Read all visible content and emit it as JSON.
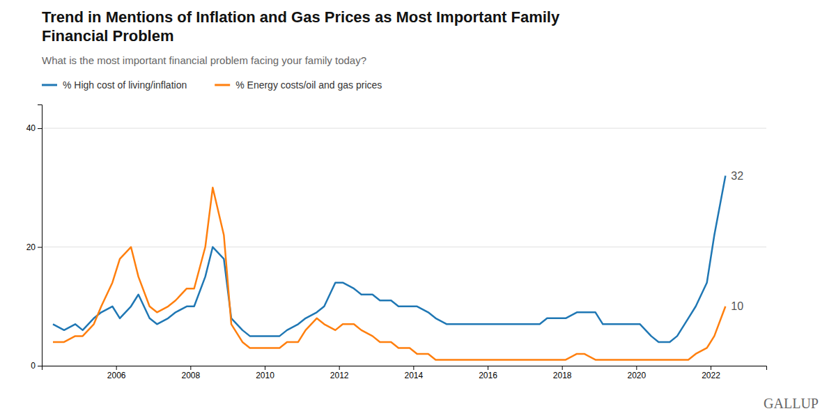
{
  "chart_data": {
    "type": "line",
    "title": "Trend in Mentions of Inflation and Gas Prices as Most Important Family\nFinancial Problem",
    "subtitle": "What is the most important financial problem facing your family today?",
    "source": "GALLUP",
    "x": [
      2004.3,
      2004.6,
      2004.9,
      2005.1,
      2005.4,
      2005.6,
      2005.9,
      2006.1,
      2006.4,
      2006.6,
      2006.9,
      2007.1,
      2007.4,
      2007.6,
      2007.9,
      2008.1,
      2008.4,
      2008.6,
      2008.9,
      2009.1,
      2009.4,
      2009.6,
      2009.9,
      2010.1,
      2010.4,
      2010.6,
      2010.9,
      2011.1,
      2011.4,
      2011.6,
      2011.9,
      2012.1,
      2012.4,
      2012.6,
      2012.9,
      2013.1,
      2013.4,
      2013.6,
      2013.9,
      2014.1,
      2014.4,
      2014.6,
      2014.9,
      2015.1,
      2015.4,
      2015.6,
      2015.9,
      2016.1,
      2016.4,
      2016.6,
      2016.9,
      2017.1,
      2017.4,
      2017.6,
      2017.9,
      2018.1,
      2018.4,
      2018.6,
      2018.9,
      2019.1,
      2019.4,
      2019.6,
      2019.9,
      2020.1,
      2020.4,
      2020.6,
      2020.9,
      2021.1,
      2021.4,
      2021.6,
      2021.9,
      2022.1,
      2022.4
    ],
    "series": [
      {
        "name": "% High cost of living/inflation",
        "values": [
          7,
          6,
          7,
          6,
          8,
          9,
          10,
          8,
          10,
          12,
          8,
          7,
          8,
          9,
          10,
          10,
          15,
          20,
          18,
          8,
          6,
          5,
          5,
          5,
          5,
          6,
          7,
          8,
          9,
          10,
          14,
          14,
          13,
          12,
          12,
          11,
          11,
          10,
          10,
          10,
          9,
          8,
          7,
          7,
          7,
          7,
          7,
          7,
          7,
          7,
          7,
          7,
          7,
          8,
          8,
          8,
          9,
          9,
          9,
          7,
          7,
          7,
          7,
          7,
          5,
          4,
          4,
          5,
          8,
          10,
          14,
          22,
          32
        ]
      },
      {
        "name": "% Energy costs/oil and gas prices",
        "values": [
          4,
          4,
          5,
          5,
          7,
          10,
          14,
          18,
          20,
          15,
          10,
          9,
          10,
          11,
          13,
          13,
          20,
          30,
          22,
          7,
          4,
          3,
          3,
          3,
          3,
          4,
          4,
          6,
          8,
          7,
          6,
          7,
          7,
          6,
          5,
          4,
          4,
          3,
          3,
          2,
          2,
          1,
          1,
          1,
          1,
          1,
          1,
          1,
          1,
          1,
          1,
          1,
          1,
          1,
          1,
          1,
          2,
          2,
          1,
          1,
          1,
          1,
          1,
          1,
          1,
          1,
          1,
          1,
          1,
          2,
          3,
          5,
          10
        ]
      }
    ],
    "annotations": [
      {
        "text": "32",
        "x": 2022.4,
        "y": 32
      },
      {
        "text": "10",
        "x": 2022.4,
        "y": 10
      }
    ],
    "xlim": [
      2004.0,
      2023.5
    ],
    "ylim": [
      0,
      44
    ],
    "xticks": [
      2006,
      2008,
      2010,
      2012,
      2014,
      2016,
      2018,
      2020,
      2022
    ],
    "yticks": [
      0,
      20,
      40
    ],
    "grid": true,
    "legend": "top"
  }
}
